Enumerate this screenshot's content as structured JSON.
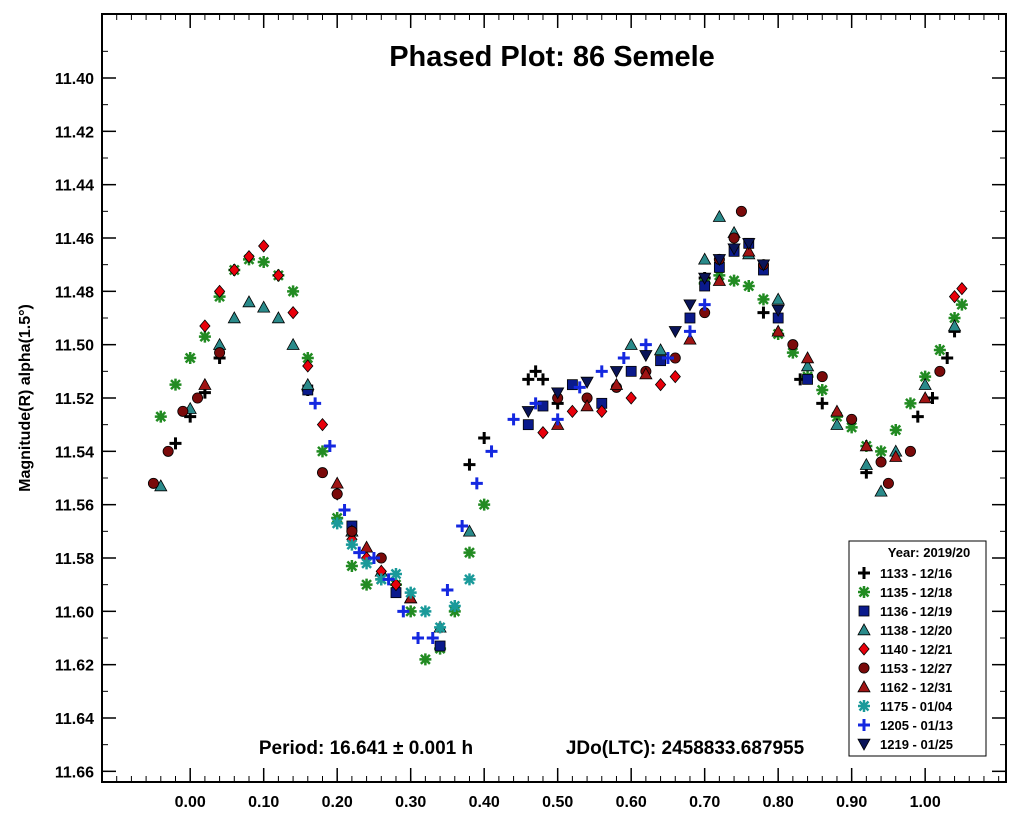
{
  "chart_data": {
    "type": "scatter",
    "title": "Phased Plot: 86 Semele",
    "ylabel": "Magnitude(R) alpha(1.5°)",
    "xlabel": "",
    "xlim": [
      -0.12,
      1.11
    ],
    "ylim": [
      11.664,
      11.376
    ],
    "y_inverted": true,
    "grid": false,
    "x_ticks": [
      "0.00",
      "0.10",
      "0.20",
      "0.30",
      "0.40",
      "0.50",
      "0.60",
      "0.70",
      "0.80",
      "0.90",
      "1.00"
    ],
    "y_ticks": [
      "11.40",
      "11.42",
      "11.44",
      "11.46",
      "11.48",
      "11.50",
      "11.52",
      "11.54",
      "11.56",
      "11.58",
      "11.60",
      "11.62",
      "11.64",
      "11.66"
    ],
    "annotations": {
      "period": "Period: 16.641 ± 0.001 h",
      "jdo": "JDo(LTC): 2458833.687955"
    },
    "legend": {
      "position": "bottom-right",
      "title": "Year: 2019/20"
    },
    "series": [
      {
        "name": "1133 - 12/16",
        "marker": "plus",
        "color": "#000000",
        "x": [
          -0.02,
          0.0,
          0.02,
          0.04,
          0.16,
          0.38,
          0.4,
          0.46,
          0.47,
          0.48,
          0.5,
          0.7,
          0.78,
          0.83,
          0.86,
          0.92,
          0.99,
          1.01,
          1.03,
          1.04
        ],
        "y": [
          11.537,
          11.527,
          11.518,
          11.505,
          11.517,
          11.545,
          11.535,
          11.513,
          11.51,
          11.513,
          11.522,
          11.475,
          11.488,
          11.513,
          11.522,
          11.548,
          11.527,
          11.52,
          11.505,
          11.495
        ]
      },
      {
        "name": "1135 - 12/18",
        "marker": "asterisk",
        "color": "#228b22",
        "x": [
          -0.04,
          -0.02,
          0.0,
          0.02,
          0.04,
          0.06,
          0.08,
          0.1,
          0.12,
          0.14,
          0.16,
          0.18,
          0.2,
          0.22,
          0.24,
          0.26,
          0.28,
          0.3,
          0.32,
          0.34,
          0.36,
          0.38,
          0.4,
          0.7,
          0.72,
          0.74,
          0.76,
          0.78,
          0.8,
          0.82,
          0.84,
          0.86,
          0.88,
          0.9,
          0.92,
          0.94,
          0.96,
          0.98,
          1.0,
          1.02,
          1.04,
          1.05
        ],
        "y": [
          11.527,
          11.515,
          11.505,
          11.497,
          11.482,
          11.472,
          11.468,
          11.469,
          11.474,
          11.48,
          11.505,
          11.54,
          11.565,
          11.583,
          11.59,
          11.588,
          11.59,
          11.6,
          11.618,
          11.614,
          11.6,
          11.578,
          11.56,
          11.477,
          11.474,
          11.476,
          11.478,
          11.483,
          11.496,
          11.503,
          11.512,
          11.517,
          11.527,
          11.531,
          11.538,
          11.54,
          11.532,
          11.522,
          11.512,
          11.502,
          11.49,
          11.485
        ]
      },
      {
        "name": "1136 - 12/19",
        "marker": "square",
        "color": "#0a1a8c",
        "x": [
          0.16,
          0.22,
          0.28,
          0.34,
          0.46,
          0.48,
          0.52,
          0.56,
          0.6,
          0.64,
          0.68,
          0.7,
          0.72,
          0.74,
          0.76,
          0.78,
          0.8,
          0.84
        ],
        "y": [
          11.517,
          11.568,
          11.593,
          11.613,
          11.53,
          11.523,
          11.515,
          11.522,
          11.51,
          11.506,
          11.49,
          11.478,
          11.471,
          11.465,
          11.462,
          11.472,
          11.49,
          11.513
        ]
      },
      {
        "name": "1138 - 12/20",
        "marker": "triangle-up",
        "color": "#2a8a8a",
        "x": [
          -0.04,
          0.0,
          0.04,
          0.06,
          0.08,
          0.1,
          0.12,
          0.14,
          0.16,
          0.22,
          0.26,
          0.3,
          0.34,
          0.38,
          0.6,
          0.64,
          0.7,
          0.72,
          0.74,
          0.76,
          0.8,
          0.84,
          0.88,
          0.92,
          0.94,
          0.96,
          1.0,
          1.04
        ],
        "y": [
          11.553,
          11.524,
          11.5,
          11.49,
          11.484,
          11.486,
          11.49,
          11.5,
          11.515,
          11.57,
          11.585,
          11.595,
          11.606,
          11.57,
          11.5,
          11.502,
          11.468,
          11.452,
          11.458,
          11.466,
          11.483,
          11.508,
          11.53,
          11.545,
          11.555,
          11.54,
          11.515,
          11.493
        ]
      },
      {
        "name": "1140 - 12/21",
        "marker": "diamond",
        "color": "#e8000b",
        "x": [
          0.02,
          0.04,
          0.06,
          0.08,
          0.1,
          0.12,
          0.14,
          0.16,
          0.18,
          0.2,
          0.22,
          0.24,
          0.26,
          0.28,
          0.48,
          0.52,
          0.56,
          0.6,
          0.64,
          0.66,
          1.04,
          1.05
        ],
        "y": [
          11.493,
          11.48,
          11.472,
          11.467,
          11.463,
          11.474,
          11.488,
          11.508,
          11.53,
          11.556,
          11.573,
          11.58,
          11.585,
          11.59,
          11.533,
          11.525,
          11.525,
          11.52,
          11.515,
          11.512,
          11.482,
          11.479
        ]
      },
      {
        "name": "1153 - 12/27",
        "marker": "circle",
        "color": "#7a0a0a",
        "x": [
          -0.05,
          -0.03,
          -0.01,
          0.01,
          0.04,
          0.18,
          0.2,
          0.22,
          0.26,
          0.5,
          0.54,
          0.58,
          0.62,
          0.66,
          0.7,
          0.72,
          0.74,
          0.75,
          0.78,
          0.82,
          0.86,
          0.9,
          0.94,
          0.95,
          0.98,
          1.02
        ],
        "y": [
          11.552,
          11.54,
          11.525,
          11.52,
          11.503,
          11.548,
          11.556,
          11.57,
          11.58,
          11.52,
          11.52,
          11.516,
          11.51,
          11.505,
          11.488,
          11.468,
          11.46,
          11.45,
          11.47,
          11.5,
          11.512,
          11.528,
          11.544,
          11.552,
          11.54,
          11.51
        ]
      },
      {
        "name": "1162 - 12/31",
        "marker": "triangle-up",
        "color": "#a01414",
        "x": [
          0.02,
          0.2,
          0.24,
          0.3,
          0.5,
          0.54,
          0.58,
          0.62,
          0.68,
          0.72,
          0.76,
          0.8,
          0.84,
          0.88,
          0.92,
          0.96,
          1.0
        ],
        "y": [
          11.515,
          11.552,
          11.576,
          11.595,
          11.53,
          11.523,
          11.515,
          11.511,
          11.498,
          11.476,
          11.465,
          11.495,
          11.505,
          11.525,
          11.538,
          11.542,
          11.52
        ]
      },
      {
        "name": "1175 - 01/04",
        "marker": "asterisk",
        "color": "#1a9a9a",
        "x": [
          0.2,
          0.22,
          0.24,
          0.26,
          0.28,
          0.3,
          0.32,
          0.34,
          0.36,
          0.38
        ],
        "y": [
          11.567,
          11.575,
          11.582,
          11.588,
          11.586,
          11.593,
          11.6,
          11.606,
          11.598,
          11.588
        ]
      },
      {
        "name": "1205 - 01/13",
        "marker": "plus",
        "color": "#1428e0",
        "x": [
          0.17,
          0.19,
          0.21,
          0.23,
          0.25,
          0.27,
          0.29,
          0.31,
          0.33,
          0.35,
          0.37,
          0.39,
          0.41,
          0.44,
          0.47,
          0.5,
          0.53,
          0.56,
          0.59,
          0.62,
          0.65,
          0.68,
          0.7
        ],
        "y": [
          11.522,
          11.538,
          11.562,
          11.578,
          11.58,
          11.588,
          11.6,
          11.61,
          11.61,
          11.592,
          11.568,
          11.552,
          11.54,
          11.528,
          11.522,
          11.528,
          11.516,
          11.51,
          11.505,
          11.5,
          11.505,
          11.495,
          11.485
        ]
      },
      {
        "name": "1219 - 01/25",
        "marker": "triangle-down",
        "color": "#0a1458",
        "x": [
          0.46,
          0.5,
          0.54,
          0.58,
          0.62,
          0.66,
          0.68,
          0.7,
          0.72,
          0.74,
          0.76,
          0.78,
          0.8
        ],
        "y": [
          11.525,
          11.518,
          11.514,
          11.51,
          11.504,
          11.495,
          11.485,
          11.475,
          11.468,
          11.464,
          11.462,
          11.47,
          11.487
        ]
      }
    ]
  }
}
